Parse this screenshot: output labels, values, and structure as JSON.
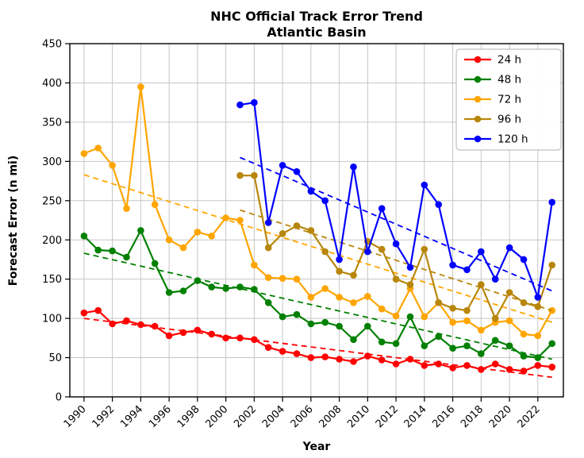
{
  "chart_data": {
    "type": "line",
    "title": "NHC Official Track Error Trend",
    "subtitle": "Atlantic Basin",
    "xlabel": "Year",
    "ylabel": "Forecast Error (n mi)",
    "xlim": [
      1989.0,
      2023.8
    ],
    "ylim": [
      0,
      450
    ],
    "xticks": [
      1990,
      1992,
      1994,
      1996,
      1998,
      2000,
      2002,
      2004,
      2006,
      2008,
      2010,
      2012,
      2014,
      2016,
      2018,
      2020,
      2022
    ],
    "yticks": [
      0,
      50,
      100,
      150,
      200,
      250,
      300,
      350,
      400,
      450
    ],
    "grid": true,
    "legend_position": "upper right",
    "marker": "circle",
    "trend_style": "dashed",
    "series": [
      {
        "name": "24 h",
        "color": "#ff0000",
        "x": [
          1990,
          1991,
          1992,
          1993,
          1994,
          1995,
          1996,
          1997,
          1998,
          1999,
          2000,
          2001,
          2002,
          2003,
          2004,
          2005,
          2006,
          2007,
          2008,
          2009,
          2010,
          2011,
          2012,
          2013,
          2014,
          2015,
          2016,
          2017,
          2018,
          2019,
          2020,
          2021,
          2022,
          2023
        ],
        "values": [
          107,
          110,
          93,
          97,
          92,
          90,
          78,
          82,
          85,
          80,
          75,
          75,
          73,
          63,
          58,
          55,
          50,
          51,
          48,
          45,
          52,
          47,
          42,
          48,
          40,
          42,
          37,
          40,
          35,
          42,
          35,
          33,
          40,
          38
        ],
        "trend": {
          "x": [
            1990,
            2023
          ],
          "y": [
            100,
            25
          ]
        }
      },
      {
        "name": "48 h",
        "color": "#008000",
        "x": [
          1990,
          1991,
          1992,
          1993,
          1994,
          1995,
          1996,
          1997,
          1998,
          1999,
          2000,
          2001,
          2002,
          2003,
          2004,
          2005,
          2006,
          2007,
          2008,
          2009,
          2010,
          2011,
          2012,
          2013,
          2014,
          2015,
          2016,
          2017,
          2018,
          2019,
          2020,
          2021,
          2022,
          2023
        ],
        "values": [
          205,
          187,
          186,
          178,
          212,
          170,
          133,
          135,
          148,
          140,
          138,
          140,
          137,
          120,
          102,
          105,
          93,
          95,
          90,
          73,
          90,
          70,
          68,
          102,
          65,
          77,
          62,
          65,
          55,
          72,
          65,
          52,
          50,
          68
        ],
        "trend": {
          "x": [
            1990,
            2023
          ],
          "y": [
            183,
            48
          ]
        }
      },
      {
        "name": "72 h",
        "color": "#ffa500",
        "x": [
          1990,
          1991,
          1992,
          1993,
          1994,
          1995,
          1996,
          1997,
          1998,
          1999,
          2000,
          2001,
          2002,
          2003,
          2004,
          2005,
          2006,
          2007,
          2008,
          2009,
          2010,
          2011,
          2012,
          2013,
          2014,
          2015,
          2016,
          2017,
          2018,
          2019,
          2020,
          2021,
          2022,
          2023
        ],
        "values": [
          310,
          317,
          295,
          240,
          395,
          245,
          200,
          190,
          210,
          205,
          228,
          225,
          168,
          152,
          151,
          150,
          127,
          138,
          127,
          120,
          128,
          112,
          103,
          138,
          102,
          120,
          95,
          97,
          85,
          95,
          97,
          80,
          78,
          110
        ],
        "trend": {
          "x": [
            1990,
            2023
          ],
          "y": [
            283,
            95
          ]
        }
      },
      {
        "name": "96 h",
        "color": "#b8860b",
        "x": [
          2001,
          2002,
          2003,
          2004,
          2005,
          2006,
          2007,
          2008,
          2009,
          2010,
          2011,
          2012,
          2013,
          2014,
          2015,
          2016,
          2017,
          2018,
          2019,
          2020,
          2021,
          2022,
          2023
        ],
        "values": [
          282,
          282,
          190,
          208,
          218,
          212,
          185,
          160,
          155,
          198,
          188,
          150,
          143,
          188,
          120,
          113,
          110,
          143,
          100,
          133,
          120,
          115,
          168
        ],
        "trend": {
          "x": [
            2001,
            2023
          ],
          "y": [
            238,
            110
          ]
        }
      },
      {
        "name": "120 h",
        "color": "#0000ff",
        "x": [
          2001,
          2002,
          2003,
          2004,
          2005,
          2006,
          2007,
          2008,
          2009,
          2010,
          2011,
          2012,
          2013,
          2014,
          2015,
          2016,
          2017,
          2018,
          2019,
          2020,
          2021,
          2022,
          2023
        ],
        "values": [
          372,
          375,
          222,
          295,
          287,
          262,
          250,
          175,
          293,
          185,
          240,
          195,
          165,
          270,
          245,
          168,
          162,
          185,
          150,
          190,
          175,
          127,
          248
        ],
        "trend": {
          "x": [
            2001,
            2023
          ],
          "y": [
            305,
            135
          ]
        }
      }
    ]
  }
}
